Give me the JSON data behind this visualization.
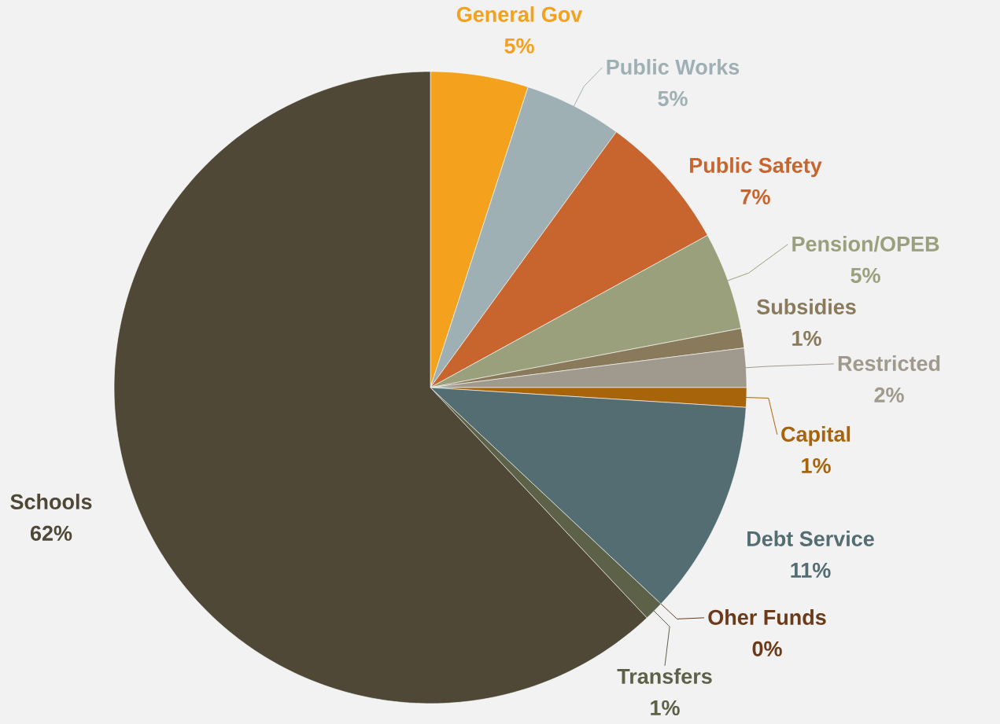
{
  "chart_data": {
    "type": "pie",
    "categories": [
      "General Gov",
      "Public Works",
      "Public Safety",
      "Pension/OPEB",
      "Subsidies",
      "Restricted",
      "Capital",
      "Debt Service",
      "Oher Funds",
      "Transfers",
      "Schools"
    ],
    "values": [
      5,
      5,
      7,
      5,
      1,
      2,
      1,
      11,
      0,
      1,
      62
    ],
    "value_labels": [
      "5%",
      "5%",
      "7%",
      "5%",
      "1%",
      "2%",
      "1%",
      "11%",
      "0%",
      "1%",
      "62%"
    ],
    "colors": [
      "#f4a11d",
      "#9fb0b4",
      "#c8652e",
      "#9ba07c",
      "#8a7a5c",
      "#a09a8e",
      "#a8640a",
      "#546d73",
      "#6b3a1a",
      "#5c6148",
      "#4f4837"
    ]
  }
}
